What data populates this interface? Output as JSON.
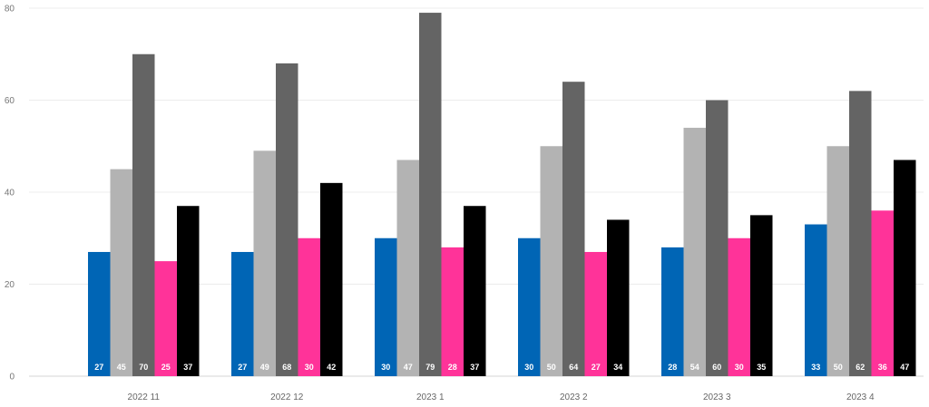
{
  "chart_data": {
    "type": "bar",
    "categories": [
      "2022 11",
      "2022 12",
      "2023 1",
      "2023 2",
      "2023 3",
      "2023 4"
    ],
    "ylim": [
      0,
      80
    ],
    "yticks": [
      0,
      20,
      40,
      60,
      80
    ],
    "grid": true,
    "series": [
      {
        "color": "#0065B5",
        "values": [
          27,
          27,
          30,
          30,
          28,
          33
        ],
        "labels": [
          "27",
          "27",
          "30",
          "30",
          "28",
          "33"
        ]
      },
      {
        "color": "#B3B3B3",
        "values": [
          45,
          49,
          47,
          50,
          54,
          50
        ],
        "labels": [
          "45",
          "49",
          "47",
          "50",
          "54",
          "50"
        ]
      },
      {
        "color": "#646464",
        "values": [
          70,
          68,
          79,
          64,
          60,
          62
        ],
        "labels": [
          "70",
          "68",
          "79",
          "64",
          "60",
          "62"
        ]
      },
      {
        "color": "#FF3399",
        "values": [
          25,
          30,
          28,
          27,
          30,
          36
        ],
        "labels": [
          "25",
          "30",
          "28",
          "27",
          "30",
          "36"
        ]
      },
      {
        "color": "#000000",
        "values": [
          37,
          42,
          37,
          34,
          35,
          47
        ],
        "labels": [
          "37",
          "42",
          "37",
          "34",
          "35",
          "47"
        ]
      }
    ]
  }
}
